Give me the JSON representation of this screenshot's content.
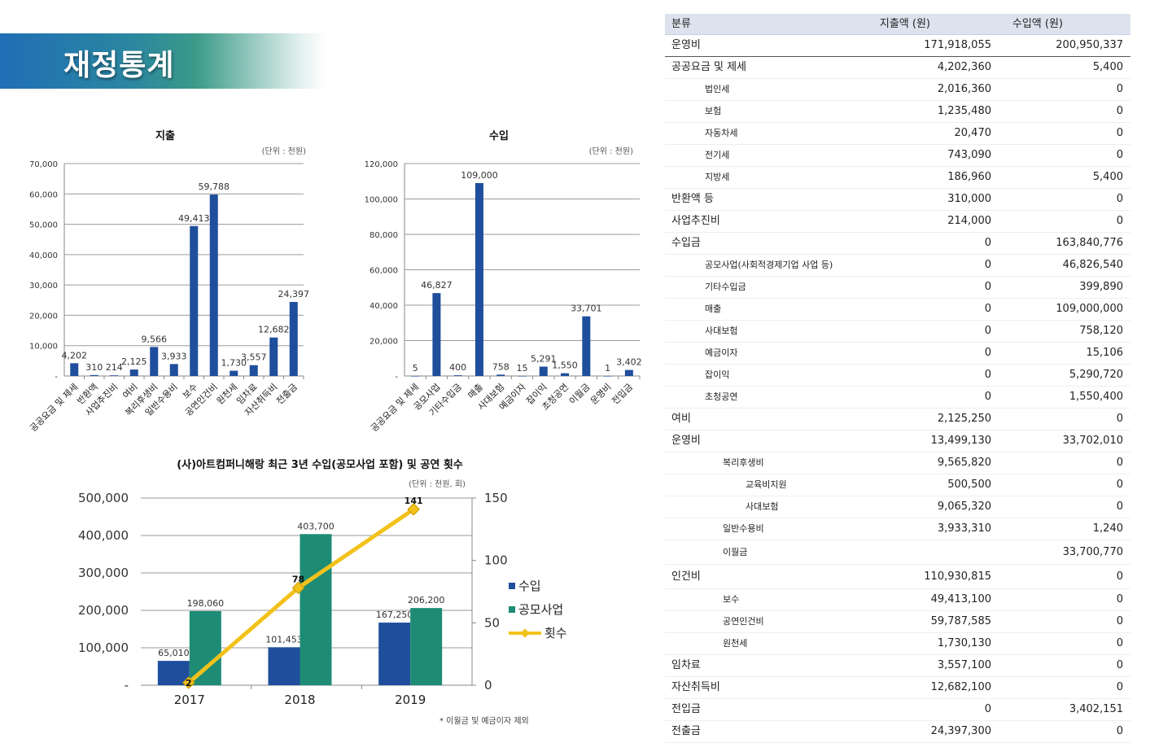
{
  "banner": {
    "title": "재정통계"
  },
  "charts_meta": {
    "note": "* 이월금 및 예금이자 제외"
  },
  "chart_data": [
    {
      "type": "bar",
      "title": "지출",
      "unit_label": "(단위 : 천원)",
      "categories": [
        "공공요금 및 제세",
        "반환액",
        "사업추진비",
        "여비",
        "복리후생비",
        "일반수용비",
        "보수",
        "공연인건비",
        "원천세",
        "임차료",
        "자산취득비",
        "전출금"
      ],
      "values": [
        4202,
        310,
        214,
        2125,
        9566,
        3933,
        49413,
        59788,
        1730,
        3557,
        12682,
        24397
      ],
      "value_labels": [
        "4,202",
        "310",
        "214",
        "2,125",
        "9,566",
        "3,933",
        "49,413",
        "59,788",
        "1,730",
        "3,557",
        "12,682",
        "24,397"
      ],
      "ylim": [
        0,
        70000
      ],
      "yticks": [
        0,
        10000,
        20000,
        30000,
        40000,
        50000,
        60000,
        70000
      ],
      "ytick_labels": [
        "-",
        "10,000",
        "20,000",
        "30,000",
        "40,000",
        "50,000",
        "60,000",
        "70,000"
      ],
      "grid": true,
      "color": "#1f4e9c"
    },
    {
      "type": "bar",
      "title": "수입",
      "unit_label": "(단위 : 천원)",
      "categories": [
        "공공요금 및 제세",
        "공모사업",
        "기타수입금",
        "매출",
        "사대보험",
        "예금이자",
        "잡이익",
        "초청공연",
        "이월금",
        "운영비",
        "전입금"
      ],
      "values": [
        5,
        46827,
        400,
        109000,
        758,
        15,
        5291,
        1550,
        33701,
        1,
        3402
      ],
      "value_labels": [
        "5",
        "46,827",
        "400",
        "109,000",
        "758",
        "15",
        "5,291",
        "1,550",
        "33,701",
        "1",
        "3,402"
      ],
      "ylim": [
        0,
        120000
      ],
      "yticks": [
        0,
        20000,
        40000,
        60000,
        80000,
        100000,
        120000
      ],
      "ytick_labels": [
        "-",
        "20,000",
        "40,000",
        "60,000",
        "80,000",
        "100,000",
        "120,000"
      ],
      "grid": true,
      "color": "#1f4e9c"
    },
    {
      "type": "bar",
      "title": "(사)아트컴퍼니해랑 최근 3년 수입(공모사업 포함) 및 공연 횟수",
      "unit_label": "(단위 : 천원, 회)",
      "categories": [
        "2017",
        "2018",
        "2019"
      ],
      "series": [
        {
          "name": "수입",
          "type": "bar",
          "values": [
            65010,
            101453,
            167250
          ],
          "value_labels": [
            "65,010",
            "101,453",
            "167,250"
          ],
          "color": "#1f4e9c"
        },
        {
          "name": "공모사업",
          "type": "bar",
          "values": [
            198060,
            403700,
            206200
          ],
          "value_labels": [
            "198,060",
            "403,700",
            "206,200"
          ],
          "color": "#1e8c74"
        },
        {
          "name": "횟수",
          "type": "line",
          "axis": "right",
          "values": [
            2,
            78,
            141
          ],
          "value_labels": [
            "2",
            "78",
            "141"
          ],
          "color": "#f2c21b"
        }
      ],
      "ylim": [
        0,
        500000
      ],
      "yticks": [
        0,
        100000,
        200000,
        300000,
        400000,
        500000
      ],
      "ytick_labels": [
        "-",
        "100,000",
        "200,000",
        "300,000",
        "400,000",
        "500,000"
      ],
      "y2lim": [
        0,
        150
      ],
      "y2ticks": [
        0,
        50,
        100,
        150
      ],
      "y2tick_labels": [
        "0",
        "50",
        "100",
        "150"
      ],
      "grid": true,
      "legend": "right"
    }
  ],
  "table": {
    "headers": [
      "분류",
      "지출액 (원)",
      "수입액 (원)"
    ],
    "rows": [
      {
        "level": 0,
        "label": "운영비",
        "exp": "171,918,055",
        "inc": "200,950,337"
      },
      {
        "level": 0,
        "label": "공공요금 및 제세",
        "exp": "4,202,360",
        "inc": "5,400"
      },
      {
        "level": 1,
        "label": "법인세",
        "exp": "2,016,360",
        "inc": "0"
      },
      {
        "level": 1,
        "label": "보험",
        "exp": "1,235,480",
        "inc": "0"
      },
      {
        "level": 1,
        "label": "자동차세",
        "exp": "20,470",
        "inc": "0"
      },
      {
        "level": 1,
        "label": "전기세",
        "exp": "743,090",
        "inc": "0"
      },
      {
        "level": 1,
        "label": "지방세",
        "exp": "186,960",
        "inc": "5,400"
      },
      {
        "level": 0,
        "label": "반환액 등",
        "exp": "310,000",
        "inc": "0"
      },
      {
        "level": 0,
        "label": "사업추진비",
        "exp": "214,000",
        "inc": "0"
      },
      {
        "level": 0,
        "label": "수입금",
        "exp": "0",
        "inc": "163,840,776"
      },
      {
        "level": 1,
        "label": "공모사업(사회적경제기업 사업 등)",
        "exp": "0",
        "inc": "46,826,540"
      },
      {
        "level": 1,
        "label": "기타수입금",
        "exp": "0",
        "inc": "399,890"
      },
      {
        "level": 1,
        "label": "매출",
        "exp": "0",
        "inc": "109,000,000"
      },
      {
        "level": 1,
        "label": "사대보험",
        "exp": "0",
        "inc": "758,120"
      },
      {
        "level": 1,
        "label": "예금이자",
        "exp": "0",
        "inc": "15,106"
      },
      {
        "level": 1,
        "label": "잡이익",
        "exp": "0",
        "inc": "5,290,720"
      },
      {
        "level": 1,
        "label": "초청공연",
        "exp": "0",
        "inc": "1,550,400"
      },
      {
        "level": 0,
        "label": "여비",
        "exp": "2,125,250",
        "inc": "0"
      },
      {
        "level": 0,
        "label": "운영비",
        "exp": "13,499,130",
        "inc": "33,702,010"
      },
      {
        "level": 2,
        "label": "복리후생비",
        "exp": "9,565,820",
        "inc": "0"
      },
      {
        "level": 3,
        "label": "교육비지원",
        "exp": "500,500",
        "inc": "0"
      },
      {
        "level": 3,
        "label": "사대보험",
        "exp": "9,065,320",
        "inc": "0"
      },
      {
        "level": 2,
        "label": "일반수용비",
        "exp": "3,933,310",
        "inc": "1,240"
      },
      {
        "level": 2,
        "label": "이월금",
        "exp": "",
        "inc": "33,700,770"
      },
      {
        "level": 0,
        "label": "인건비",
        "exp": "110,930,815",
        "inc": "0"
      },
      {
        "level": 2,
        "label": "보수",
        "exp": "49,413,100",
        "inc": "0"
      },
      {
        "level": 2,
        "label": "공연인건비",
        "exp": "59,787,585",
        "inc": "0"
      },
      {
        "level": 2,
        "label": "원천세",
        "exp": "1,730,130",
        "inc": "0"
      },
      {
        "level": 0,
        "label": "임차료",
        "exp": "3,557,100",
        "inc": "0"
      },
      {
        "level": 0,
        "label": "자산취득비",
        "exp": "12,682,100",
        "inc": "0"
      },
      {
        "level": 0,
        "label": "전입금",
        "exp": "0",
        "inc": "3,402,151"
      },
      {
        "level": 0,
        "label": "전출금",
        "exp": "24,397,300",
        "inc": "0"
      }
    ]
  }
}
